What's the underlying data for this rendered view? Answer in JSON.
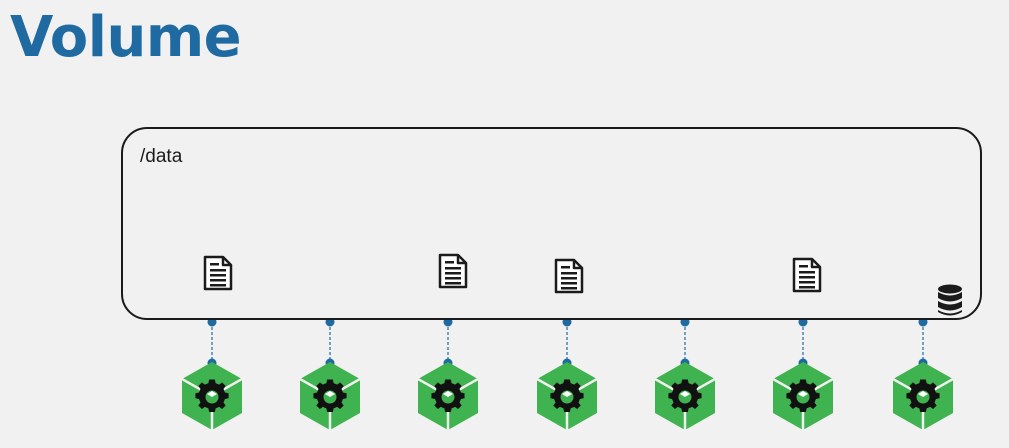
{
  "title": "Volume",
  "volume": {
    "path_label": "/data"
  },
  "colors": {
    "title": "#1f6aa0",
    "pod_green": "#3fb34f",
    "pod_green_dark": "#2f9a3f",
    "connector_blue": "#1f6aa0",
    "outline": "#1b1b1b",
    "background": "#f1f1f1"
  },
  "icons": {
    "document": "document-icon",
    "database": "database-icon",
    "pod": "pod-gear-icon"
  }
}
